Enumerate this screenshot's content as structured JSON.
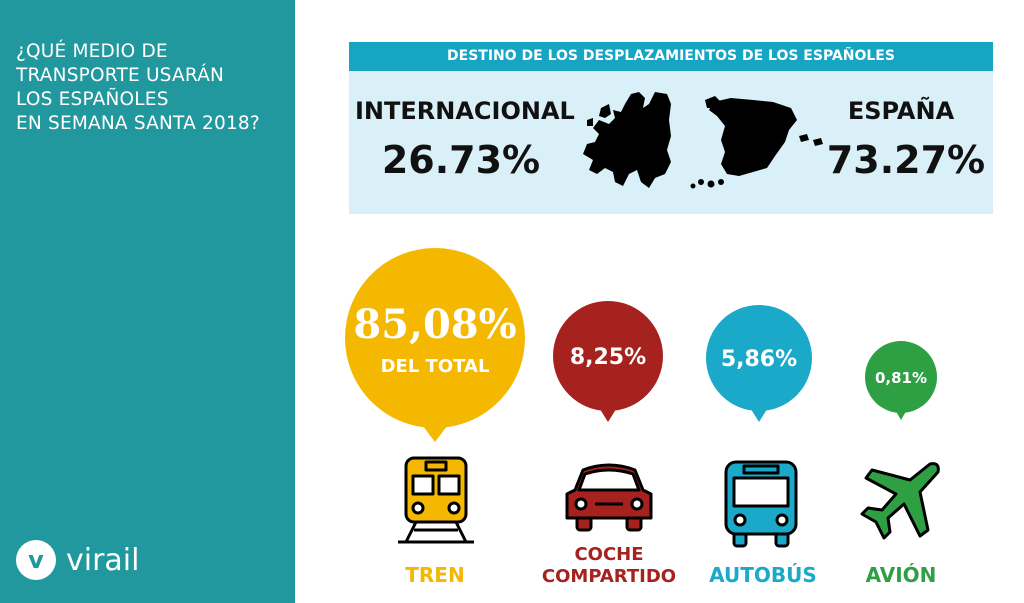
{
  "sidebar": {
    "title_lines": [
      "¿QUÉ MEDIO DE",
      "TRANSPORTE USARÁN",
      "LOS ESPAÑOLES",
      "EN SEMANA SANTA 2018?"
    ],
    "brand": "virail",
    "brand_mark": "v"
  },
  "destinations": {
    "heading": "DESTINO DE LOS DESPLAZAMIENTOS DE LOS ESPAÑOLES",
    "international": {
      "label": "INTERNACIONAL",
      "value": "26.73%",
      "icon": "europe-map-icon"
    },
    "spain": {
      "label": "ESPAÑA",
      "value": "73.27%",
      "icon": "spain-map-icon"
    }
  },
  "modes": [
    {
      "id": "tren",
      "value": "85,08%",
      "sublabel": "DEL TOTAL",
      "label": [
        "TREN"
      ],
      "color": "#f5b800",
      "icon": "train-icon"
    },
    {
      "id": "coche",
      "value": "8,25%",
      "label": [
        "COCHE",
        "COMPARTIDO"
      ],
      "color": "#a6221e",
      "icon": "car-icon"
    },
    {
      "id": "autobus",
      "value": "5,86%",
      "label": [
        "AUTOBÚS"
      ],
      "color": "#1aa9c9",
      "icon": "bus-icon"
    },
    {
      "id": "avion",
      "value": "0,81%",
      "label": [
        "AVIÓN"
      ],
      "color": "#2ea043",
      "icon": "plane-icon"
    }
  ]
}
